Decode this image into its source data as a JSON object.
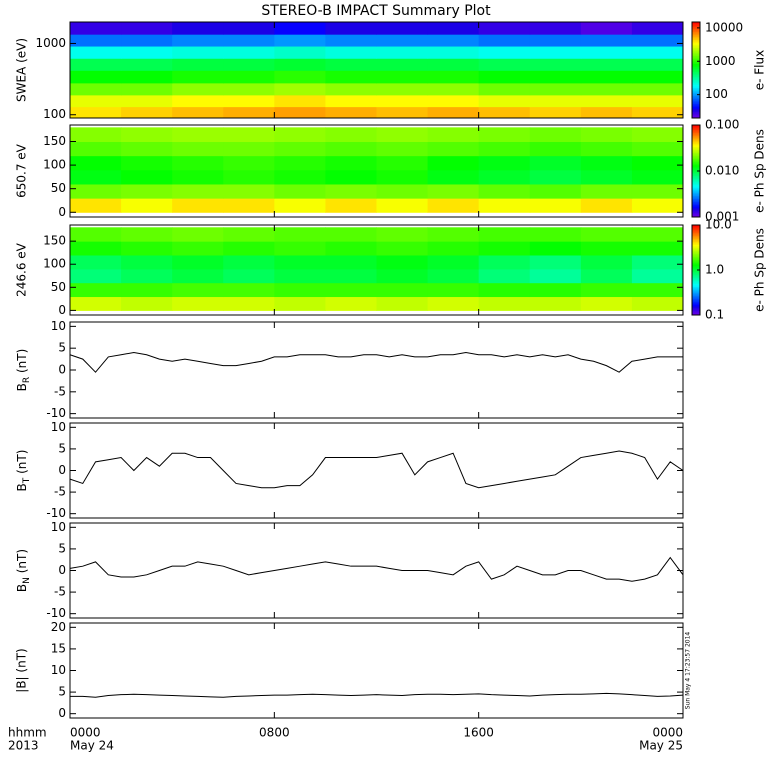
{
  "title": "STEREO-B IMPACT Summary Plot",
  "timestamp": "Sun May  4 17:23:57 2014",
  "x_axis": {
    "xlim": [
      0,
      24
    ],
    "xticks": [
      {
        "value": 0,
        "label": "0000"
      },
      {
        "value": 8,
        "label": "0800"
      },
      {
        "value": 16,
        "label": "1600"
      },
      {
        "value": 24,
        "label": "0000"
      }
    ],
    "date_labels": [
      {
        "value": 0,
        "label": "May 24"
      },
      {
        "value": 24,
        "label": "May 25"
      }
    ],
    "row_labels": [
      "hhmm",
      "2013"
    ],
    "x": [
      0,
      0.5,
      1,
      1.5,
      2,
      2.5,
      3,
      3.5,
      4,
      4.5,
      5,
      5.5,
      6,
      6.5,
      7,
      7.5,
      8,
      8.5,
      9,
      9.5,
      10,
      10.5,
      11,
      11.5,
      12,
      12.5,
      13,
      13.5,
      14,
      14.5,
      15,
      15.5,
      16,
      16.5,
      17,
      17.5,
      18,
      18.5,
      19,
      19.5,
      20,
      20.5,
      21,
      21.5,
      22,
      22.5,
      23,
      23.5,
      24
    ]
  },
  "chart_data": [
    {
      "type": "heatmap",
      "ylabel": "SWEA (eV)",
      "ylog": true,
      "ylim": [
        90,
        2000
      ],
      "yticks": [
        100,
        1000
      ],
      "y_bins": [
        90,
        130,
        190,
        280,
        420,
        620,
        920,
        1350,
        2000
      ],
      "x_bins": [
        0,
        2,
        4,
        6,
        8,
        10,
        12,
        14,
        16,
        18,
        20,
        22,
        24
      ],
      "z": [
        [
          4000,
          4500,
          5000,
          5500,
          6000,
          5500,
          5000,
          5500,
          5000,
          4500,
          5000,
          4500
        ],
        [
          3000,
          3000,
          3500,
          3500,
          4000,
          3500,
          3500,
          3500,
          3000,
          3000,
          3000,
          3000
        ],
        [
          1500,
          1500,
          1800,
          1800,
          2000,
          1800,
          1800,
          1800,
          1500,
          1500,
          1500,
          1500
        ],
        [
          800,
          800,
          900,
          900,
          1000,
          900,
          900,
          900,
          800,
          800,
          800,
          800
        ],
        [
          500,
          500,
          550,
          550,
          600,
          550,
          550,
          550,
          500,
          500,
          500,
          500
        ],
        [
          200,
          200,
          220,
          220,
          250,
          220,
          220,
          220,
          200,
          200,
          200,
          200
        ],
        [
          80,
          80,
          90,
          90,
          100,
          90,
          90,
          90,
          80,
          80,
          80,
          80
        ],
        [
          30,
          30,
          35,
          35,
          40,
          35,
          35,
          35,
          30,
          30,
          25,
          30
        ]
      ],
      "zlog": true,
      "zlim": [
        20,
        15000
      ],
      "zticks": [
        100,
        1000,
        10000
      ],
      "zlabel": "e- Flux",
      "colormap": "rainbow"
    },
    {
      "type": "heatmap",
      "ylabel": "650.7 eV",
      "ylog": false,
      "ylim": [
        -10,
        185
      ],
      "yticks": [
        0,
        50,
        100,
        150
      ],
      "y_bins": [
        0,
        30,
        60,
        90,
        120,
        150,
        180
      ],
      "x_bins": [
        0,
        2,
        4,
        6,
        8,
        10,
        12,
        14,
        16,
        18,
        20,
        22,
        24
      ],
      "z": [
        [
          0.04,
          0.035,
          0.04,
          0.04,
          0.035,
          0.04,
          0.035,
          0.04,
          0.035,
          0.035,
          0.04,
          0.035
        ],
        [
          0.02,
          0.021,
          0.022,
          0.022,
          0.02,
          0.021,
          0.02,
          0.021,
          0.019,
          0.018,
          0.02,
          0.02
        ],
        [
          0.012,
          0.013,
          0.014,
          0.015,
          0.014,
          0.013,
          0.014,
          0.012,
          0.011,
          0.01,
          0.011,
          0.012
        ],
        [
          0.013,
          0.014,
          0.015,
          0.016,
          0.015,
          0.014,
          0.015,
          0.013,
          0.012,
          0.011,
          0.012,
          0.013
        ],
        [
          0.018,
          0.019,
          0.02,
          0.02,
          0.019,
          0.018,
          0.019,
          0.018,
          0.017,
          0.016,
          0.017,
          0.018
        ],
        [
          0.022,
          0.023,
          0.024,
          0.024,
          0.023,
          0.022,
          0.023,
          0.022,
          0.021,
          0.02,
          0.021,
          0.022
        ]
      ],
      "zlog": true,
      "zlim": [
        0.001,
        0.1
      ],
      "zticks": [
        0.001,
        {
          "value": 0.01,
          "label": "0.010"
        },
        {
          "value": 0.1,
          "label": "0.100"
        }
      ],
      "zlabel": "e- Ph Sp Dens",
      "colormap": "rainbow"
    },
    {
      "type": "heatmap",
      "ylabel": "246.6 eV",
      "ylog": false,
      "ylim": [
        -10,
        185
      ],
      "yticks": [
        0,
        50,
        100,
        150
      ],
      "y_bins": [
        0,
        30,
        60,
        90,
        120,
        150,
        180
      ],
      "x_bins": [
        0,
        2,
        4,
        6,
        8,
        10,
        12,
        14,
        16,
        18,
        20,
        22,
        24
      ],
      "z": [
        [
          3,
          2.8,
          3,
          3,
          2.8,
          3,
          2.8,
          3,
          2.8,
          2.8,
          3,
          2.8
        ],
        [
          1.6,
          1.6,
          1.7,
          1.7,
          1.6,
          1.6,
          1.6,
          1.6,
          1.5,
          1.5,
          1.6,
          1.6
        ],
        [
          0.8,
          0.9,
          1,
          0.9,
          1,
          1,
          1.1,
          1,
          0.8,
          0.7,
          0.9,
          0.7
        ],
        [
          0.9,
          1,
          1.1,
          1,
          1.1,
          1.1,
          1.2,
          1.1,
          0.9,
          0.8,
          1,
          0.8
        ],
        [
          1.4,
          1.5,
          1.6,
          1.5,
          1.6,
          1.5,
          1.6,
          1.5,
          1.4,
          1.3,
          1.4,
          1.4
        ],
        [
          1.8,
          1.9,
          2,
          1.9,
          1.8,
          1.8,
          1.9,
          1.8,
          1.7,
          1.7,
          1.8,
          1.8
        ]
      ],
      "zlog": true,
      "zlim": [
        0.1,
        10
      ],
      "zticks": [
        0.1,
        {
          "value": 1,
          "label": "1.0"
        },
        {
          "value": 10,
          "label": "10.0"
        }
      ],
      "zlabel": "e- Ph Sp Dens",
      "colormap": "rainbow"
    },
    {
      "type": "line",
      "ylabel": "B",
      "ylabel_sub": "R",
      "ylabel_unit": "(nT)",
      "ylim": [
        -11,
        11
      ],
      "yticks": [
        -10,
        -5,
        0,
        5,
        10
      ],
      "color": "#000000",
      "values": [
        3.5,
        2.5,
        -0.5,
        3,
        3.5,
        4,
        3.5,
        2.5,
        2,
        2.5,
        2,
        1.5,
        1,
        1,
        1.5,
        2,
        3,
        3,
        3.5,
        3.5,
        3.5,
        3,
        3,
        3.5,
        3.5,
        3,
        3.5,
        3,
        3,
        3.5,
        3.5,
        4,
        3.5,
        3.5,
        3,
        3.5,
        3,
        3.5,
        3,
        3.5,
        2.5,
        2,
        1,
        -0.5,
        2,
        2.5,
        3,
        3,
        3
      ]
    },
    {
      "type": "line",
      "ylabel": "B",
      "ylabel_sub": "T",
      "ylabel_unit": "(nT)",
      "ylim": [
        -11,
        11
      ],
      "yticks": [
        -10,
        -5,
        0,
        5,
        10
      ],
      "color": "#000000",
      "values": [
        -2,
        -3,
        2,
        2.5,
        3,
        0,
        3,
        1,
        4,
        4,
        3,
        3,
        0,
        -3,
        -3.5,
        -4,
        -4,
        -3.5,
        -3.5,
        -1,
        3,
        3,
        3,
        3,
        3,
        3.5,
        4,
        -1,
        2,
        3,
        4,
        -3,
        -4,
        -3.5,
        -3,
        -2.5,
        -2,
        -1.5,
        -1,
        1,
        3,
        3.5,
        4,
        4.5,
        4,
        3,
        -2,
        2,
        0
      ]
    },
    {
      "type": "line",
      "ylabel": "B",
      "ylabel_sub": "N",
      "ylabel_unit": "(nT)",
      "ylim": [
        -11,
        11
      ],
      "yticks": [
        -10,
        -5,
        0,
        5,
        10
      ],
      "color": "#000000",
      "values": [
        0.5,
        1,
        2,
        -1,
        -1.5,
        -1.5,
        -1,
        0,
        1,
        1,
        2,
        1.5,
        1,
        0,
        -1,
        -0.5,
        0,
        0.5,
        1,
        1.5,
        2,
        1.5,
        1,
        1,
        1,
        0.5,
        0,
        0,
        0,
        -0.5,
        -1,
        1,
        2,
        -2,
        -1,
        1,
        0,
        -1,
        -1,
        0,
        0,
        -1,
        -2,
        -2,
        -2.5,
        -2,
        -1,
        3,
        -1
      ]
    },
    {
      "type": "line",
      "ylabel": "|B| (nT)",
      "ylim": [
        -1,
        21
      ],
      "yticks": [
        0,
        5,
        10,
        15,
        20
      ],
      "color": "#000000",
      "values": [
        4,
        4,
        3.8,
        4.2,
        4.4,
        4.5,
        4.4,
        4.3,
        4.2,
        4.1,
        4,
        3.9,
        3.8,
        4,
        4.1,
        4.2,
        4.3,
        4.3,
        4.4,
        4.5,
        4.4,
        4.3,
        4.2,
        4.3,
        4.4,
        4.3,
        4.2,
        4.4,
        4.5,
        4.5,
        4.4,
        4.5,
        4.6,
        4.4,
        4.3,
        4.2,
        4.1,
        4.3,
        4.4,
        4.5,
        4.5,
        4.6,
        4.7,
        4.6,
        4.4,
        4.2,
        4,
        4.1,
        4.3
      ]
    }
  ]
}
